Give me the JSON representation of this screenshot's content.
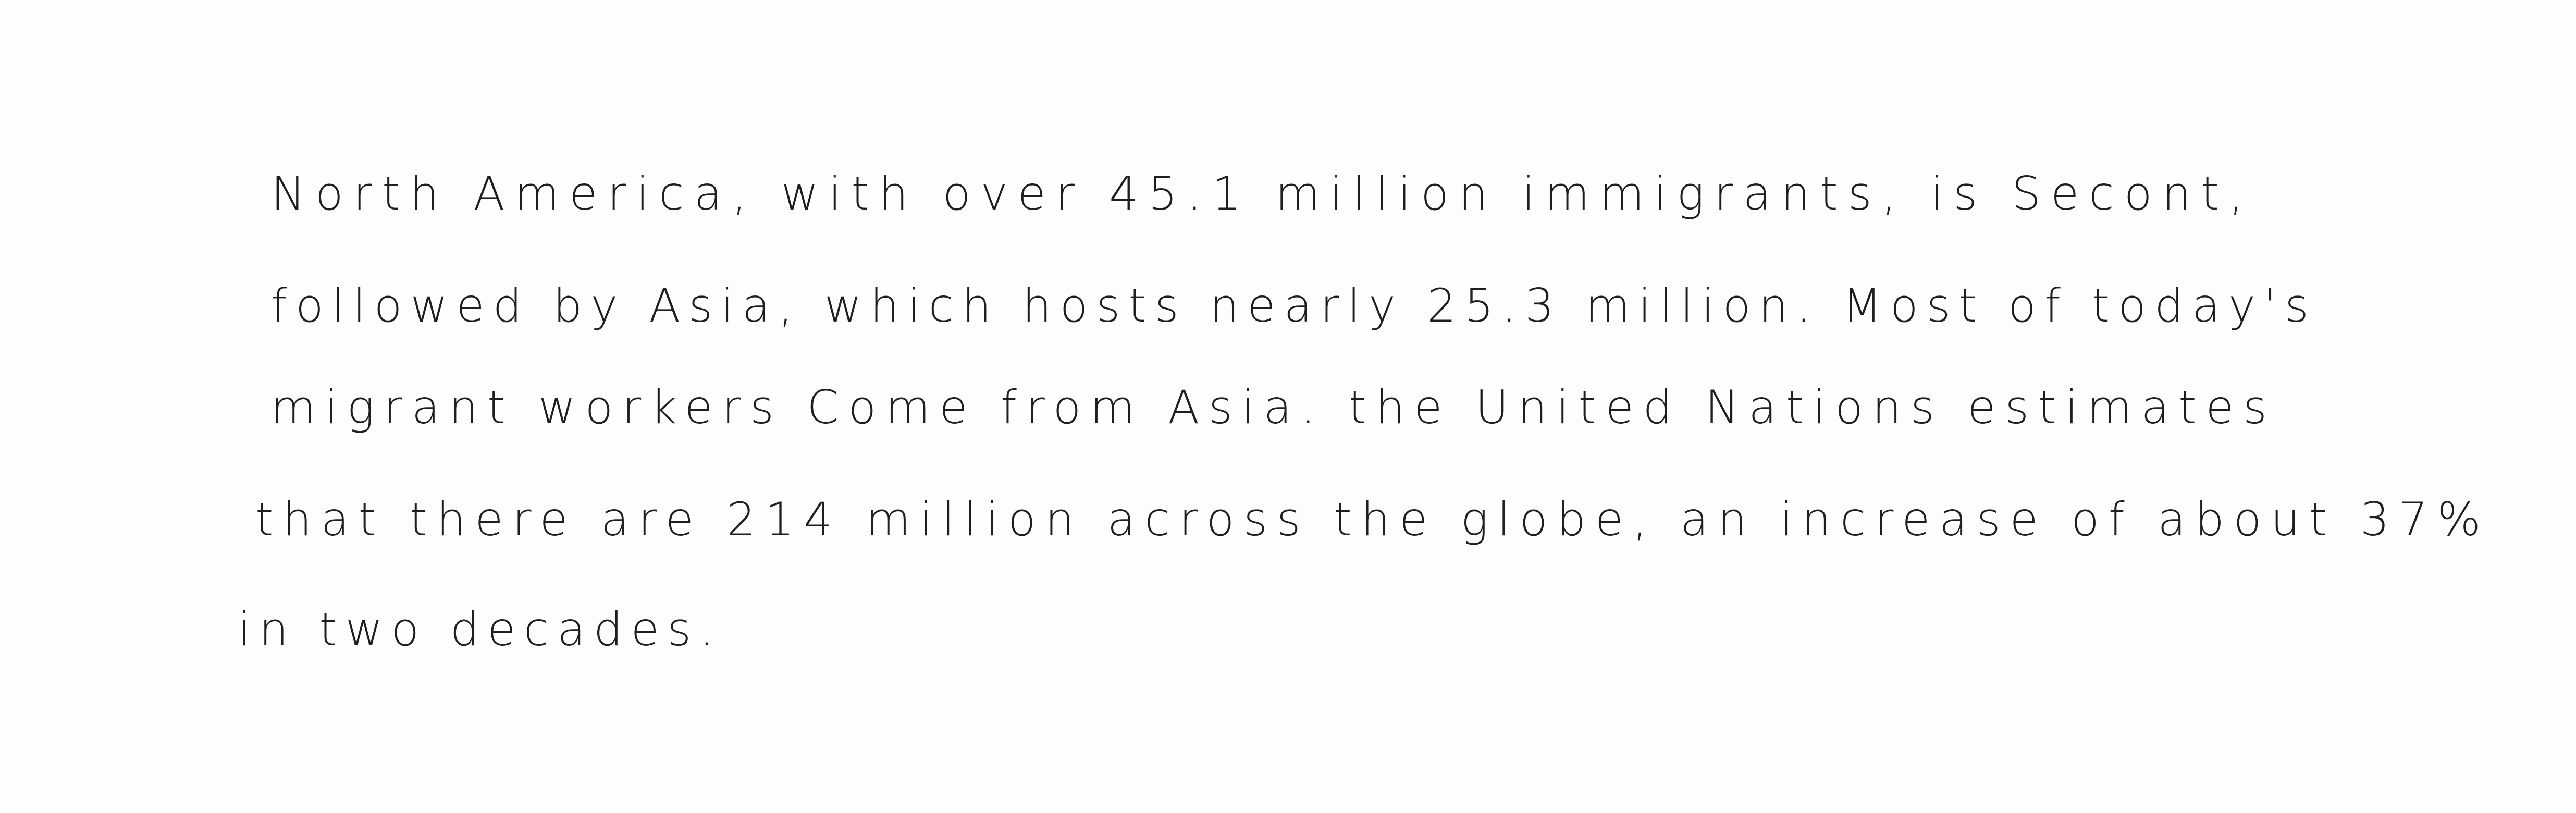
{
  "lines": [
    "North America, with over 45.1 million immigrants, is Secont,",
    "followed by Asia, which hosts nearly 25.3 million. Most of today's",
    "migrant workers Come from Asia. the United Nations estimates",
    "that there are 214 million across the globe, an increase of about 37%",
    "in two decades."
  ]
}
